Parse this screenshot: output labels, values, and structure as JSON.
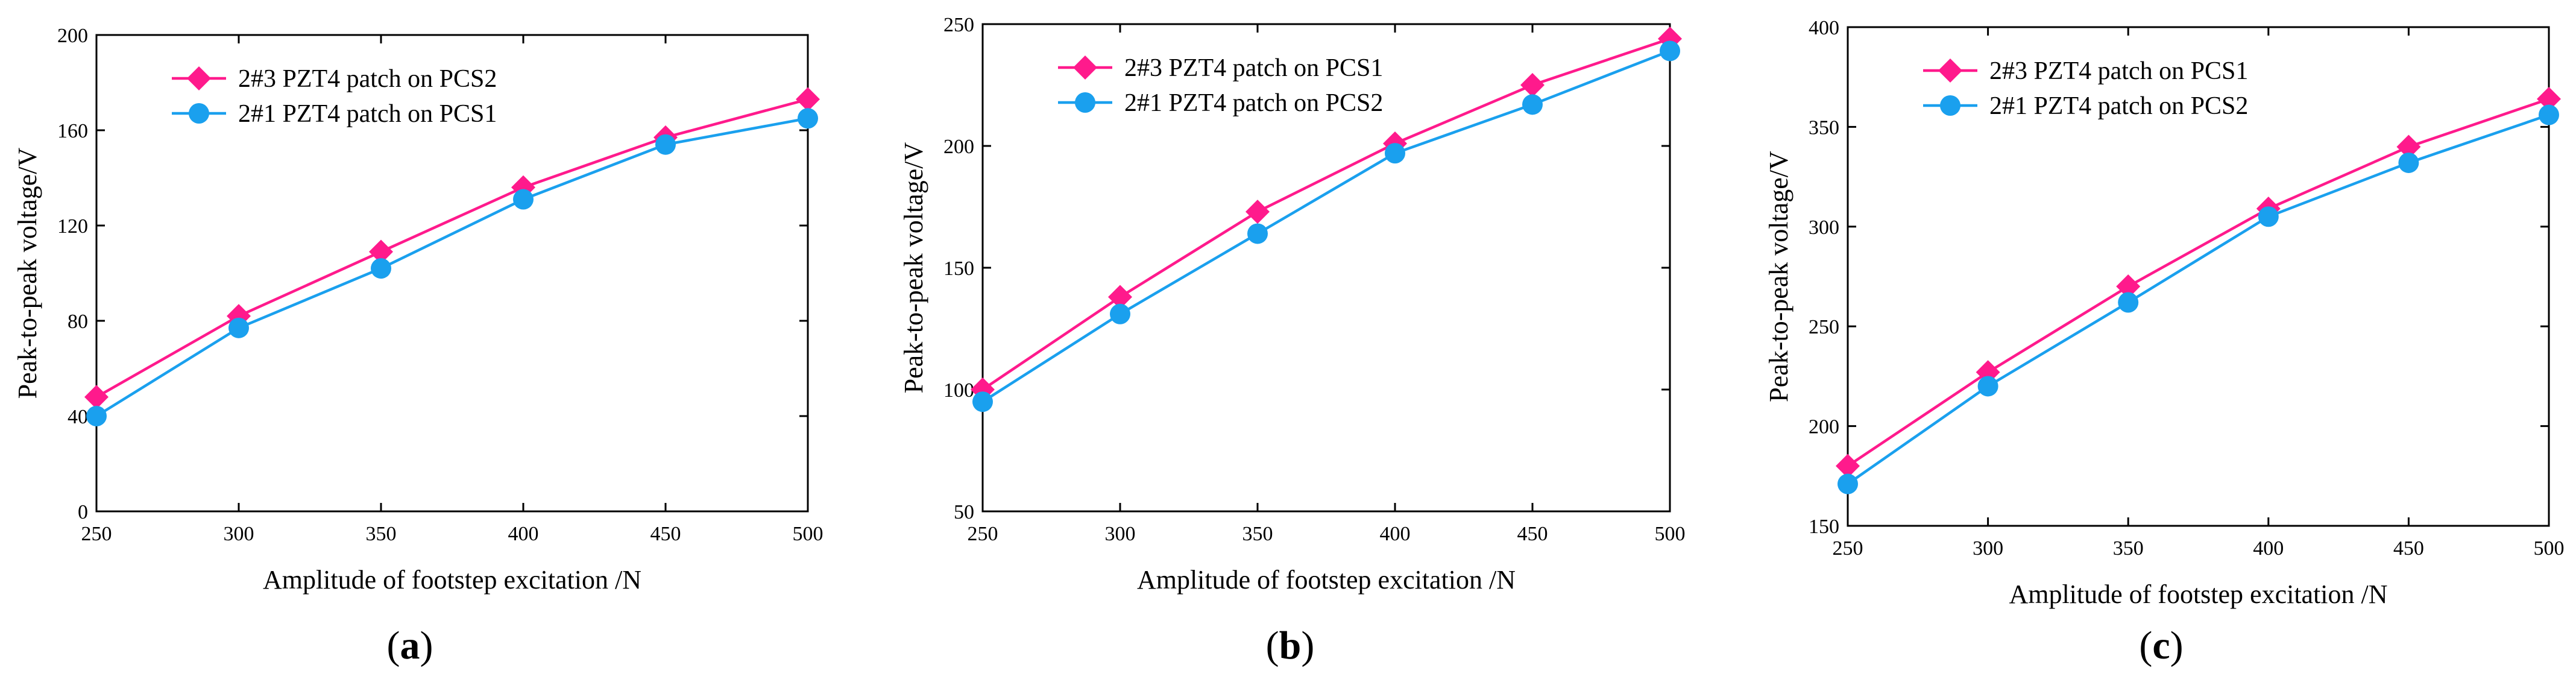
{
  "colors": {
    "series_a": "#ff1a8c",
    "series_b": "#1aa0ee",
    "axis": "#000000"
  },
  "markers": {
    "series_a": "diamond",
    "series_b": "circle"
  },
  "chart_data": [
    {
      "panel": "a",
      "type": "line",
      "xlabel": "Amplitude of footstep excitation /N",
      "ylabel": "Peak-to-peak voltage/V",
      "xlim": [
        250,
        500
      ],
      "ylim": [
        0,
        200
      ],
      "xticks": [
        250,
        300,
        350,
        400,
        450,
        500
      ],
      "yticks": [
        0,
        40,
        80,
        120,
        160,
        200
      ],
      "x": [
        250,
        300,
        350,
        400,
        450,
        500
      ],
      "legend_position": "top-left",
      "series": [
        {
          "name": "2#3 PZT4 patch on PCS2",
          "values": [
            48,
            82,
            109,
            136,
            157,
            173
          ]
        },
        {
          "name": "2#1 PZT4 patch on PCS1",
          "values": [
            40,
            77,
            102,
            131,
            154,
            165
          ]
        }
      ]
    },
    {
      "panel": "b",
      "type": "line",
      "xlabel": "Amplitude of footstep excitation /N",
      "ylabel": "Peak-to-peak voltage/V",
      "xlim": [
        250,
        500
      ],
      "ylim": [
        50,
        250
      ],
      "xticks": [
        250,
        300,
        350,
        400,
        450,
        500
      ],
      "yticks": [
        50,
        100,
        150,
        200,
        250
      ],
      "x": [
        250,
        300,
        350,
        400,
        450,
        500
      ],
      "legend_position": "top-left",
      "series": [
        {
          "name": "2#3 PZT4 patch on PCS1",
          "values": [
            100,
            138,
            173,
            201,
            225,
            244
          ]
        },
        {
          "name": "2#1 PZT4 patch on PCS2",
          "values": [
            95,
            131,
            164,
            197,
            217,
            239
          ]
        }
      ]
    },
    {
      "panel": "c",
      "type": "line",
      "xlabel": "Amplitude of footstep excitation /N",
      "ylabel": "Peak-to-peak voltage/V",
      "xlim": [
        250,
        500
      ],
      "ylim": [
        150,
        400
      ],
      "xticks": [
        250,
        300,
        350,
        400,
        450,
        500
      ],
      "yticks": [
        150,
        200,
        250,
        300,
        350,
        400
      ],
      "x": [
        250,
        300,
        350,
        400,
        450,
        500
      ],
      "legend_position": "top-left",
      "series": [
        {
          "name": "2#3 PZT4 patch on PCS1",
          "values": [
            180,
            227,
            270,
            309,
            340,
            364
          ]
        },
        {
          "name": "2#1 PZT4 patch on PCS2",
          "values": [
            171,
            220,
            262,
            305,
            332,
            356
          ]
        }
      ]
    }
  ]
}
